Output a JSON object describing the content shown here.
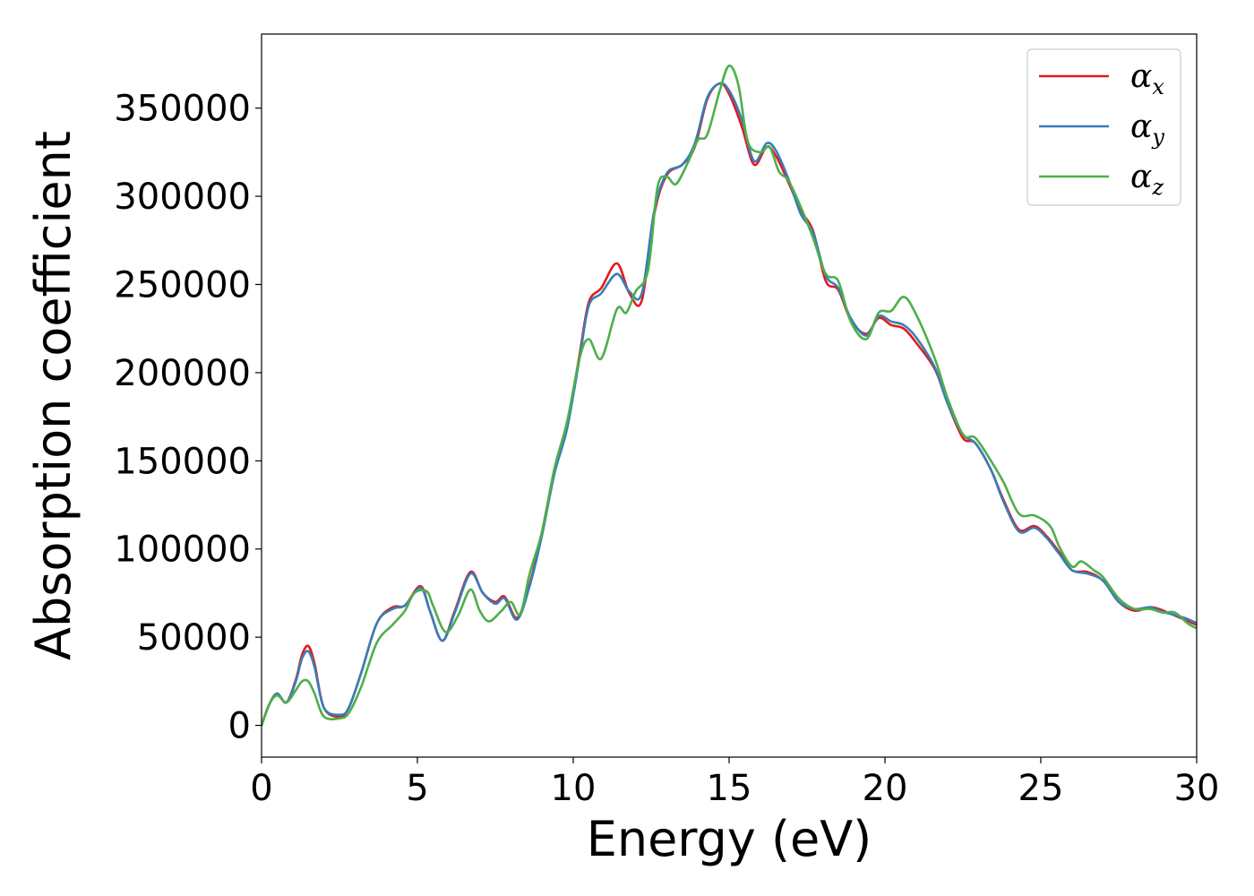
{
  "chart_data": {
    "type": "line",
    "xlabel": "Energy (eV)",
    "ylabel": "Absorption coefficient",
    "xlim": [
      0,
      30
    ],
    "ylim": [
      -18000,
      392000
    ],
    "xticks": [
      0,
      5,
      10,
      15,
      20,
      25,
      30
    ],
    "yticks": [
      0,
      50000,
      100000,
      150000,
      200000,
      250000,
      300000,
      350000
    ],
    "grid": false,
    "legend_position": "top-right",
    "series": [
      {
        "name": "αx",
        "symbol": "α",
        "subscript": "x",
        "color": "#e41a1c",
        "points": [
          [
            0,
            0
          ],
          [
            0.25,
            12000
          ],
          [
            0.5,
            18000
          ],
          [
            0.8,
            13000
          ],
          [
            1.1,
            26000
          ],
          [
            1.3,
            40000
          ],
          [
            1.5,
            45000
          ],
          [
            1.7,
            35000
          ],
          [
            2.0,
            10000
          ],
          [
            2.5,
            5000
          ],
          [
            2.8,
            10000
          ],
          [
            3.2,
            30000
          ],
          [
            3.7,
            58000
          ],
          [
            4.2,
            67000
          ],
          [
            4.6,
            68000
          ],
          [
            5.1,
            79000
          ],
          [
            5.4,
            65000
          ],
          [
            5.8,
            48000
          ],
          [
            6.2,
            65000
          ],
          [
            6.7,
            87000
          ],
          [
            7.1,
            75000
          ],
          [
            7.5,
            70000
          ],
          [
            7.8,
            73000
          ],
          [
            8.2,
            61000
          ],
          [
            8.6,
            80000
          ],
          [
            9.0,
            110000
          ],
          [
            9.4,
            145000
          ],
          [
            9.8,
            170000
          ],
          [
            10.2,
            210000
          ],
          [
            10.5,
            240000
          ],
          [
            10.9,
            248000
          ],
          [
            11.4,
            262000
          ],
          [
            11.8,
            245000
          ],
          [
            12.2,
            241000
          ],
          [
            12.6,
            290000
          ],
          [
            13.0,
            312000
          ],
          [
            13.5,
            318000
          ],
          [
            13.9,
            328000
          ],
          [
            14.3,
            355000
          ],
          [
            14.7,
            364000
          ],
          [
            15.0,
            358000
          ],
          [
            15.4,
            340000
          ],
          [
            15.8,
            318000
          ],
          [
            16.2,
            328000
          ],
          [
            16.5,
            323000
          ],
          [
            16.9,
            308000
          ],
          [
            17.3,
            292000
          ],
          [
            17.7,
            280000
          ],
          [
            18.1,
            252000
          ],
          [
            18.5,
            247000
          ],
          [
            18.9,
            230000
          ],
          [
            19.4,
            222000
          ],
          [
            19.8,
            231000
          ],
          [
            20.2,
            227000
          ],
          [
            20.6,
            225000
          ],
          [
            21.0,
            217000
          ],
          [
            21.6,
            202000
          ],
          [
            22.0,
            183000
          ],
          [
            22.5,
            163000
          ],
          [
            22.9,
            160000
          ],
          [
            23.4,
            145000
          ],
          [
            23.8,
            128000
          ],
          [
            24.3,
            111000
          ],
          [
            24.8,
            113000
          ],
          [
            25.2,
            107000
          ],
          [
            25.6,
            98000
          ],
          [
            26.0,
            88000
          ],
          [
            26.5,
            87000
          ],
          [
            27.0,
            82000
          ],
          [
            27.5,
            70000
          ],
          [
            28.0,
            65000
          ],
          [
            28.5,
            67000
          ],
          [
            28.8,
            66000
          ],
          [
            29.2,
            63000
          ],
          [
            29.6,
            60000
          ],
          [
            30.0,
            57000
          ]
        ]
      },
      {
        "name": "αy",
        "symbol": "α",
        "subscript": "y",
        "color": "#377eb8",
        "points": [
          [
            0,
            0
          ],
          [
            0.25,
            12000
          ],
          [
            0.5,
            18000
          ],
          [
            0.8,
            13000
          ],
          [
            1.1,
            25000
          ],
          [
            1.3,
            38000
          ],
          [
            1.5,
            42000
          ],
          [
            1.7,
            33000
          ],
          [
            2.0,
            10000
          ],
          [
            2.5,
            6000
          ],
          [
            2.8,
            10000
          ],
          [
            3.2,
            30000
          ],
          [
            3.7,
            58000
          ],
          [
            4.2,
            66000
          ],
          [
            4.6,
            68000
          ],
          [
            5.1,
            78000
          ],
          [
            5.4,
            65000
          ],
          [
            5.8,
            48000
          ],
          [
            6.2,
            64000
          ],
          [
            6.7,
            86000
          ],
          [
            7.1,
            75000
          ],
          [
            7.5,
            69000
          ],
          [
            7.8,
            72000
          ],
          [
            8.2,
            60000
          ],
          [
            8.6,
            79000
          ],
          [
            9.0,
            108000
          ],
          [
            9.4,
            143000
          ],
          [
            9.8,
            168000
          ],
          [
            10.2,
            208000
          ],
          [
            10.5,
            238000
          ],
          [
            10.9,
            245000
          ],
          [
            11.4,
            256000
          ],
          [
            11.8,
            246000
          ],
          [
            12.2,
            245000
          ],
          [
            12.6,
            292000
          ],
          [
            13.0,
            313000
          ],
          [
            13.5,
            318000
          ],
          [
            13.9,
            330000
          ],
          [
            14.3,
            356000
          ],
          [
            14.7,
            364000
          ],
          [
            15.0,
            360000
          ],
          [
            15.4,
            344000
          ],
          [
            15.8,
            320000
          ],
          [
            16.2,
            330000
          ],
          [
            16.5,
            326000
          ],
          [
            16.9,
            310000
          ],
          [
            17.3,
            290000
          ],
          [
            17.7,
            279000
          ],
          [
            18.1,
            255000
          ],
          [
            18.5,
            248000
          ],
          [
            18.9,
            231000
          ],
          [
            19.4,
            221000
          ],
          [
            19.8,
            232000
          ],
          [
            20.2,
            229000
          ],
          [
            20.6,
            227000
          ],
          [
            21.0,
            220000
          ],
          [
            21.6,
            203000
          ],
          [
            22.0,
            183000
          ],
          [
            22.5,
            165000
          ],
          [
            22.9,
            160000
          ],
          [
            23.4,
            145000
          ],
          [
            23.8,
            127000
          ],
          [
            24.3,
            110000
          ],
          [
            24.8,
            112000
          ],
          [
            25.2,
            106000
          ],
          [
            25.6,
            97000
          ],
          [
            26.0,
            88000
          ],
          [
            26.5,
            86000
          ],
          [
            27.0,
            82000
          ],
          [
            27.5,
            70000
          ],
          [
            28.0,
            66000
          ],
          [
            28.5,
            67000
          ],
          [
            28.8,
            65000
          ],
          [
            29.2,
            63000
          ],
          [
            29.6,
            61000
          ],
          [
            30.0,
            58000
          ]
        ]
      },
      {
        "name": "αz",
        "symbol": "α",
        "subscript": "z",
        "color": "#4daf4a",
        "points": [
          [
            0,
            0
          ],
          [
            0.25,
            12000
          ],
          [
            0.5,
            17000
          ],
          [
            0.8,
            13000
          ],
          [
            1.1,
            20000
          ],
          [
            1.3,
            25000
          ],
          [
            1.5,
            25000
          ],
          [
            1.7,
            18000
          ],
          [
            2.0,
            5000
          ],
          [
            2.5,
            4000
          ],
          [
            2.8,
            7000
          ],
          [
            3.2,
            22000
          ],
          [
            3.7,
            47000
          ],
          [
            4.2,
            57000
          ],
          [
            4.6,
            65000
          ],
          [
            4.9,
            75000
          ],
          [
            5.3,
            76000
          ],
          [
            5.5,
            68000
          ],
          [
            5.9,
            53000
          ],
          [
            6.3,
            62000
          ],
          [
            6.7,
            77000
          ],
          [
            7.0,
            65000
          ],
          [
            7.3,
            59000
          ],
          [
            7.7,
            65000
          ],
          [
            8.0,
            70000
          ],
          [
            8.3,
            63000
          ],
          [
            8.6,
            86000
          ],
          [
            9.0,
            110000
          ],
          [
            9.4,
            146000
          ],
          [
            9.8,
            172000
          ],
          [
            10.2,
            208000
          ],
          [
            10.5,
            219000
          ],
          [
            10.9,
            208000
          ],
          [
            11.4,
            236000
          ],
          [
            11.7,
            234000
          ],
          [
            12.0,
            246000
          ],
          [
            12.4,
            258000
          ],
          [
            12.7,
            305000
          ],
          [
            13.0,
            311000
          ],
          [
            13.3,
            307000
          ],
          [
            13.7,
            320000
          ],
          [
            14.0,
            332000
          ],
          [
            14.3,
            335000
          ],
          [
            14.7,
            360000
          ],
          [
            15.0,
            374000
          ],
          [
            15.3,
            363000
          ],
          [
            15.6,
            331000
          ],
          [
            16.0,
            325000
          ],
          [
            16.3,
            328000
          ],
          [
            16.6,
            314000
          ],
          [
            16.9,
            309000
          ],
          [
            17.3,
            294000
          ],
          [
            17.7,
            276000
          ],
          [
            18.1,
            256000
          ],
          [
            18.5,
            252000
          ],
          [
            18.9,
            229000
          ],
          [
            19.4,
            219000
          ],
          [
            19.8,
            234000
          ],
          [
            20.2,
            235000
          ],
          [
            20.6,
            243000
          ],
          [
            21.0,
            233000
          ],
          [
            21.6,
            208000
          ],
          [
            22.0,
            186000
          ],
          [
            22.5,
            165000
          ],
          [
            22.9,
            163000
          ],
          [
            23.4,
            150000
          ],
          [
            23.8,
            138000
          ],
          [
            24.3,
            120000
          ],
          [
            24.8,
            119000
          ],
          [
            25.3,
            113000
          ],
          [
            25.6,
            101000
          ],
          [
            26.0,
            90000
          ],
          [
            26.3,
            93000
          ],
          [
            26.7,
            88000
          ],
          [
            27.0,
            84000
          ],
          [
            27.5,
            72000
          ],
          [
            28.0,
            66000
          ],
          [
            28.5,
            66000
          ],
          [
            28.9,
            64000
          ],
          [
            29.3,
            64000
          ],
          [
            29.7,
            58000
          ],
          [
            30.0,
            55000
          ]
        ]
      }
    ]
  }
}
